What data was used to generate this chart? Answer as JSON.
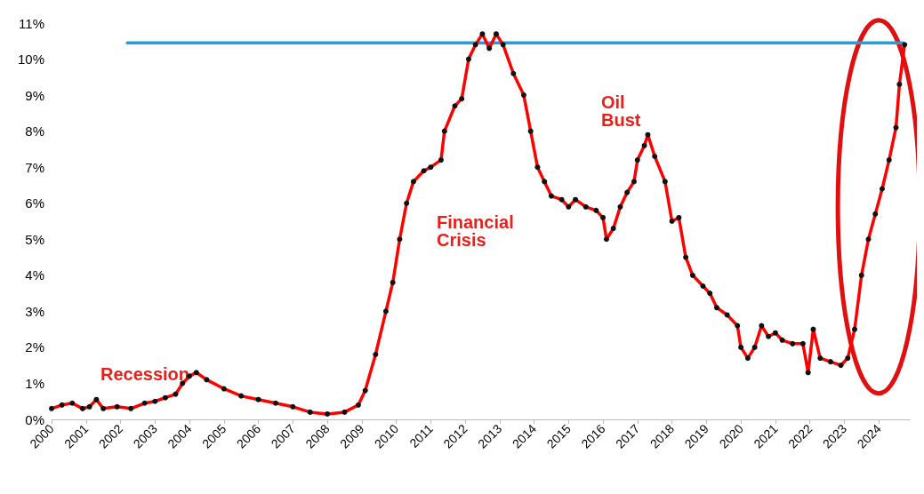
{
  "chart_data": {
    "type": "line",
    "xlim": [
      2000,
      2024.9
    ],
    "ylim": [
      0,
      11
    ],
    "xticks": [
      2000,
      2001,
      2002,
      2003,
      2004,
      2005,
      2006,
      2007,
      2008,
      2009,
      2010,
      2011,
      2012,
      2013,
      2014,
      2015,
      2016,
      2017,
      2018,
      2019,
      2020,
      2021,
      2022,
      2023,
      2024
    ],
    "yticks": [
      {
        "value": 0,
        "label": "0%"
      },
      {
        "value": 1,
        "label": "1%"
      },
      {
        "value": 2,
        "label": "2%"
      },
      {
        "value": 3,
        "label": "3%"
      },
      {
        "value": 4,
        "label": "4%"
      },
      {
        "value": 5,
        "label": "5%"
      },
      {
        "value": 6,
        "label": "6%"
      },
      {
        "value": 7,
        "label": "7%"
      },
      {
        "value": 8,
        "label": "8%"
      },
      {
        "value": 9,
        "label": "9%"
      },
      {
        "value": 10,
        "label": "10%"
      },
      {
        "value": 11,
        "label": "11%"
      }
    ],
    "grid": false,
    "marker": "circle",
    "line_style": "solid",
    "series": [
      {
        "color": "#ff0000",
        "x": [
          2000.0,
          2000.3,
          2000.6,
          2000.9,
          2001.1,
          2001.3,
          2001.5,
          2001.9,
          2002.3,
          2002.7,
          2003.0,
          2003.3,
          2003.6,
          2003.8,
          2004.0,
          2004.2,
          2004.5,
          2005.0,
          2005.5,
          2006.0,
          2006.5,
          2007.0,
          2007.5,
          2008.0,
          2008.5,
          2008.9,
          2009.1,
          2009.4,
          2009.7,
          2009.9,
          2010.1,
          2010.3,
          2010.5,
          2010.8,
          2011.0,
          2011.3,
          2011.4,
          2011.7,
          2011.9,
          2012.1,
          2012.3,
          2012.5,
          2012.7,
          2012.9,
          2013.1,
          2013.4,
          2013.7,
          2013.9,
          2014.1,
          2014.3,
          2014.5,
          2014.8,
          2015.0,
          2015.2,
          2015.5,
          2015.8,
          2016.0,
          2016.1,
          2016.3,
          2016.5,
          2016.7,
          2016.9,
          2017.0,
          2017.2,
          2017.3,
          2017.5,
          2017.8,
          2018.0,
          2018.2,
          2018.4,
          2018.6,
          2018.9,
          2019.1,
          2019.3,
          2019.6,
          2019.9,
          2020.0,
          2020.2,
          2020.4,
          2020.6,
          2020.8,
          2021.0,
          2021.2,
          2021.5,
          2021.8,
          2021.95,
          2022.1,
          2022.3,
          2022.6,
          2022.9,
          2023.1,
          2023.3,
          2023.5,
          2023.7,
          2023.9,
          2024.1,
          2024.3,
          2024.5,
          2024.6,
          2024.75
        ],
        "values": [
          0.3,
          0.4,
          0.45,
          0.3,
          0.35,
          0.55,
          0.3,
          0.35,
          0.3,
          0.45,
          0.5,
          0.6,
          0.7,
          1.0,
          1.2,
          1.3,
          1.1,
          0.85,
          0.65,
          0.55,
          0.45,
          0.35,
          0.2,
          0.15,
          0.2,
          0.4,
          0.8,
          1.8,
          3.0,
          3.8,
          5.0,
          6.0,
          6.6,
          6.9,
          7.0,
          7.2,
          8.0,
          8.7,
          8.9,
          10.0,
          10.4,
          10.7,
          10.3,
          10.7,
          10.4,
          9.6,
          9.0,
          8.0,
          7.0,
          6.6,
          6.2,
          6.1,
          5.9,
          6.1,
          5.9,
          5.8,
          5.6,
          5.0,
          5.3,
          5.9,
          6.3,
          6.6,
          7.2,
          7.6,
          7.9,
          7.3,
          6.6,
          5.5,
          5.6,
          4.5,
          4.0,
          3.7,
          3.5,
          3.1,
          2.9,
          2.6,
          2.0,
          1.7,
          2.0,
          2.6,
          2.3,
          2.4,
          2.2,
          2.1,
          2.1,
          1.3,
          2.5,
          1.7,
          1.6,
          1.5,
          1.7,
          2.5,
          4.0,
          5.0,
          5.7,
          6.4,
          7.2,
          8.1,
          9.3,
          10.4
        ]
      },
      {
        "color": "#1ea0e0",
        "marker": "none",
        "x": [
          2002.2,
          2024.7
        ],
        "values": [
          10.45,
          10.45
        ]
      }
    ],
    "annotations": [
      "Recession",
      "Financial\nCrisis",
      "Oil\nBust"
    ]
  }
}
